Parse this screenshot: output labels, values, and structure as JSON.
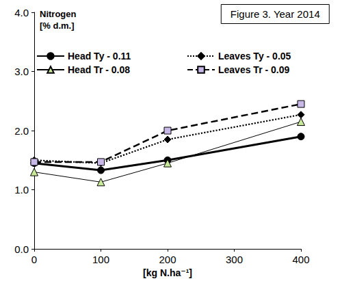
{
  "chart_data": {
    "type": "line",
    "title": "Figure 3. Year 2014",
    "y_label": "Nitrogen\n[% d.m.]",
    "x_label": "[kg N.ha⁻¹]",
    "x": [
      0,
      100,
      200,
      400
    ],
    "series": [
      {
        "name": "Head Ty - 0.11",
        "color": "#000000",
        "marker": "circle",
        "line_style": "solid",
        "values": [
          1.45,
          1.33,
          1.5,
          1.9
        ]
      },
      {
        "name": "Leaves Ty - 0.05",
        "color": "#000000",
        "marker": "diamond",
        "line_style": "dotted",
        "values": [
          1.5,
          1.45,
          1.85,
          2.27
        ]
      },
      {
        "name": "Head Tr - 0.08",
        "color": "#c8e89a",
        "marker": "triangle",
        "line_style": "solid",
        "values": [
          1.3,
          1.13,
          1.45,
          2.15
        ]
      },
      {
        "name": "Leaves Tr - 0.09",
        "color": "#c8b8e8",
        "marker": "square",
        "line_style": "dashed",
        "values": [
          1.47,
          1.47,
          2.0,
          2.45
        ]
      }
    ],
    "xlim": [
      0,
      400
    ],
    "xticks": [
      0,
      100,
      200,
      300,
      400
    ],
    "ylim": [
      0,
      4
    ],
    "yticks": [
      {
        "value": 0,
        "label": "0.0"
      },
      {
        "value": 1,
        "label": "1.0"
      },
      {
        "value": 2,
        "label": "2.0"
      },
      {
        "value": 3,
        "label": "3.0"
      },
      {
        "value": 4,
        "label": "4.0"
      }
    ],
    "grid": false,
    "legend": "top"
  }
}
